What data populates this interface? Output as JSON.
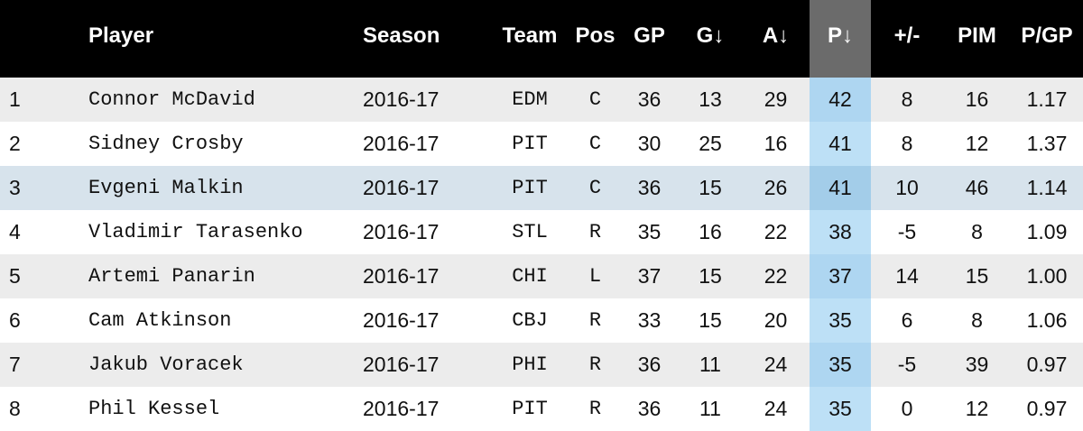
{
  "columns": [
    {
      "key": "rank",
      "label": ""
    },
    {
      "key": "player",
      "label": "Player"
    },
    {
      "key": "season",
      "label": "Season"
    },
    {
      "key": "team",
      "label": "Team"
    },
    {
      "key": "pos",
      "label": "Pos"
    },
    {
      "key": "gp",
      "label": "GP"
    },
    {
      "key": "g",
      "label": "G↓"
    },
    {
      "key": "a",
      "label": "A↓"
    },
    {
      "key": "p",
      "label": "P↓"
    },
    {
      "key": "pm",
      "label": "+/-"
    },
    {
      "key": "pim",
      "label": "PIM"
    },
    {
      "key": "pgp",
      "label": "P/GP"
    }
  ],
  "sorted_column": "p",
  "highlighted_row": 3,
  "colors": {
    "header_bg": "#000000",
    "sorted_header_bg": "#6b6b6b",
    "row_odd": "#ececec",
    "row_even": "#ffffff",
    "row_highlight": "#d7e3ec",
    "points_column": "#aed6f1"
  },
  "rows": [
    {
      "rank": "1",
      "player": "Connor McDavid",
      "season": "2016-17",
      "team": "EDM",
      "pos": "C",
      "gp": "36",
      "g": "13",
      "a": "29",
      "p": "42",
      "pm": "8",
      "pim": "16",
      "pgp": "1.17"
    },
    {
      "rank": "2",
      "player": "Sidney Crosby",
      "season": "2016-17",
      "team": "PIT",
      "pos": "C",
      "gp": "30",
      "g": "25",
      "a": "16",
      "p": "41",
      "pm": "8",
      "pim": "12",
      "pgp": "1.37"
    },
    {
      "rank": "3",
      "player": "Evgeni Malkin",
      "season": "2016-17",
      "team": "PIT",
      "pos": "C",
      "gp": "36",
      "g": "15",
      "a": "26",
      "p": "41",
      "pm": "10",
      "pim": "46",
      "pgp": "1.14"
    },
    {
      "rank": "4",
      "player": "Vladimir Tarasenko",
      "season": "2016-17",
      "team": "STL",
      "pos": "R",
      "gp": "35",
      "g": "16",
      "a": "22",
      "p": "38",
      "pm": "-5",
      "pim": "8",
      "pgp": "1.09"
    },
    {
      "rank": "5",
      "player": "Artemi Panarin",
      "season": "2016-17",
      "team": "CHI",
      "pos": "L",
      "gp": "37",
      "g": "15",
      "a": "22",
      "p": "37",
      "pm": "14",
      "pim": "15",
      "pgp": "1.00"
    },
    {
      "rank": "6",
      "player": "Cam Atkinson",
      "season": "2016-17",
      "team": "CBJ",
      "pos": "R",
      "gp": "33",
      "g": "15",
      "a": "20",
      "p": "35",
      "pm": "6",
      "pim": "8",
      "pgp": "1.06"
    },
    {
      "rank": "7",
      "player": "Jakub Voracek",
      "season": "2016-17",
      "team": "PHI",
      "pos": "R",
      "gp": "36",
      "g": "11",
      "a": "24",
      "p": "35",
      "pm": "-5",
      "pim": "39",
      "pgp": "0.97"
    },
    {
      "rank": "8",
      "player": "Phil Kessel",
      "season": "2016-17",
      "team": "PIT",
      "pos": "R",
      "gp": "36",
      "g": "11",
      "a": "24",
      "p": "35",
      "pm": "0",
      "pim": "12",
      "pgp": "0.97"
    }
  ]
}
